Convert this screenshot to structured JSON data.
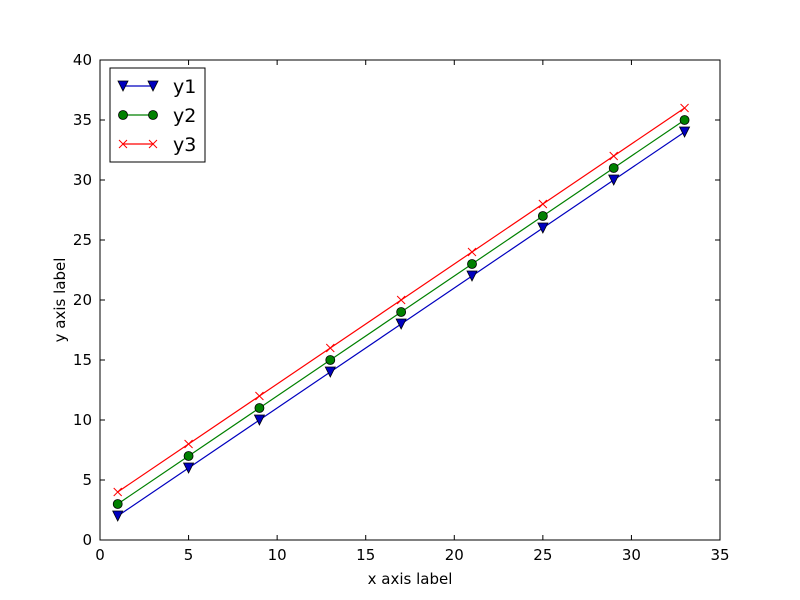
{
  "chart_data": {
    "type": "line",
    "title": "",
    "xlabel": "x axis label",
    "ylabel": "y axis label",
    "xlim": [
      0,
      35
    ],
    "ylim": [
      0,
      40
    ],
    "xticks": [
      "0",
      "5",
      "10",
      "15",
      "20",
      "25",
      "30",
      "35"
    ],
    "yticks": [
      "0",
      "5",
      "10",
      "15",
      "20",
      "25",
      "30",
      "35",
      "40"
    ],
    "grid": false,
    "legend_position": "top-left",
    "x": [
      1,
      5,
      9,
      13,
      17,
      21,
      25,
      29,
      33
    ],
    "series": [
      {
        "name": "y1",
        "values": [
          2,
          6,
          10,
          14,
          18,
          22,
          26,
          30,
          34
        ],
        "color": "#0000bf",
        "marker": "triangle-down"
      },
      {
        "name": "y2",
        "values": [
          3,
          7,
          11,
          15,
          19,
          23,
          27,
          31,
          35
        ],
        "color": "#008000",
        "marker": "circle"
      },
      {
        "name": "y3",
        "values": [
          4,
          8,
          12,
          16,
          20,
          24,
          28,
          32,
          36
        ],
        "color": "#ff0000",
        "marker": "x"
      }
    ]
  }
}
